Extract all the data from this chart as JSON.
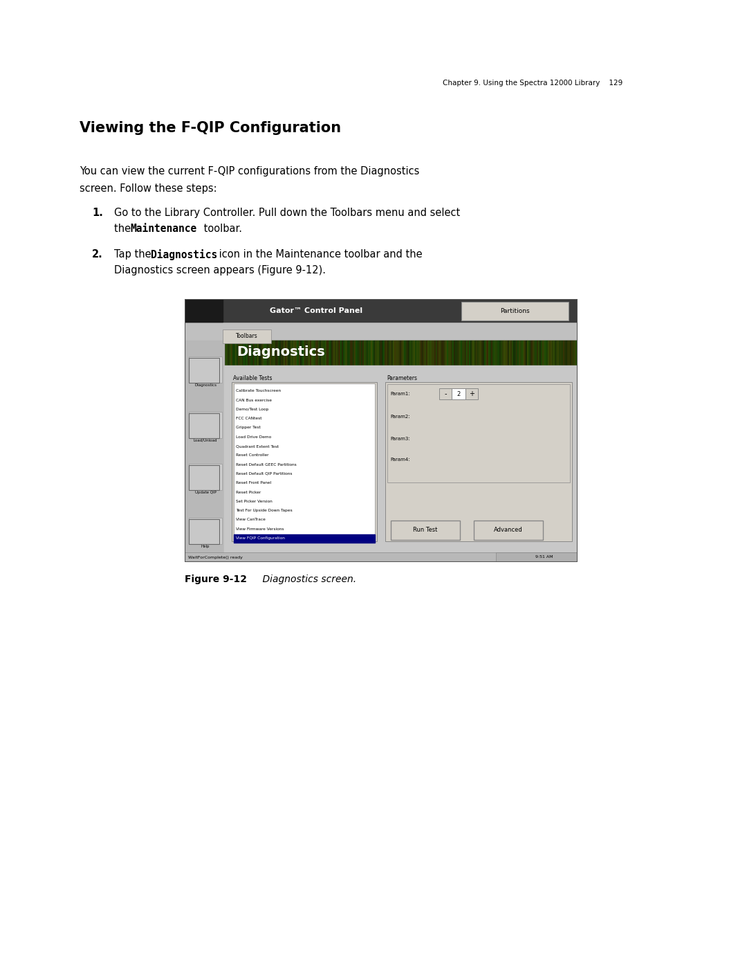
{
  "page_width": 10.8,
  "page_height": 13.97,
  "bg_color": "#ffffff",
  "header_text": "Chapter 9. Using the Spectra 12000 Library    129",
  "header_fontsize": 7.5,
  "title": "Viewing the F-QIP Configuration",
  "title_fontsize": 15,
  "body_fontsize": 10.5,
  "step_fontsize": 10.5,
  "small_fontsize": 8,
  "fig_cap_fontsize": 10,
  "screenshot_test_items": [
    "Calibrate Touchscreen",
    "CAN Bus exercise",
    "Demo/Test Loop",
    "FCC CANtest",
    "Gripper Test",
    "Load Drive Demo",
    "Quadrant Extent Test",
    "Reset Controller",
    "Reset Default GEEC Partitions",
    "Reset Default QIP Partitions",
    "Reset Front Panel",
    "Reset Picker",
    "Set Picker Version",
    "Test For Upside Down Tapes",
    "View CanTrace",
    "View Firmware Versions",
    "View FQIP Configuration"
  ],
  "screenshot_highlighted": "View FQIP Configuration"
}
